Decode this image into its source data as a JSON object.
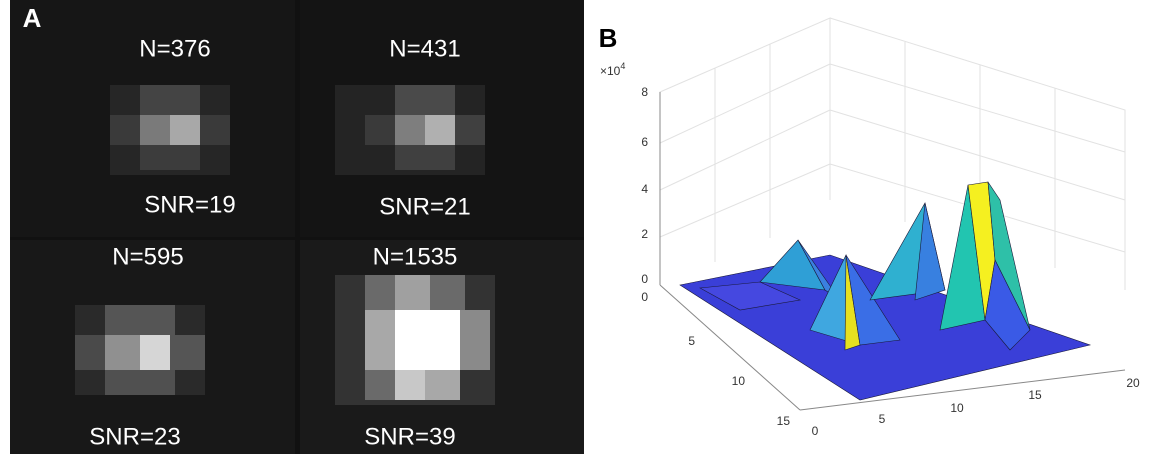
{
  "panel_a": {
    "label": "A",
    "images": [
      {
        "n": "N=376",
        "snr": "SNR=19"
      },
      {
        "n": "N=431",
        "snr": "SNR=21"
      },
      {
        "n": "N=595",
        "snr": "SNR=23"
      },
      {
        "n": "N=1535",
        "snr": "SNR=39"
      }
    ]
  },
  "panel_b": {
    "label": "B",
    "z_multiplier": "×10",
    "z_exponent": "4",
    "z_ticks": [
      "0",
      "2",
      "4",
      "6",
      "8"
    ],
    "y_ticks": [
      "0",
      "5",
      "10",
      "15"
    ],
    "x_ticks": [
      "0",
      "5",
      "10",
      "15",
      "20"
    ]
  }
}
